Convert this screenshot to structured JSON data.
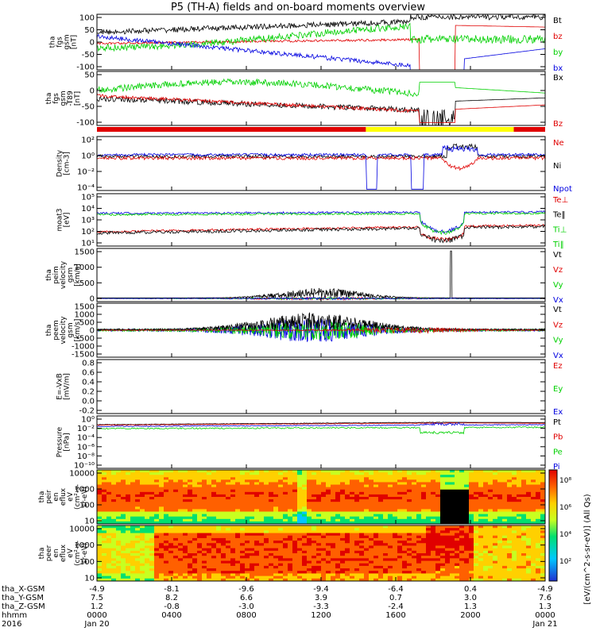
{
  "title": "P5 (TH-A) fields and on-board moments overview",
  "colors": {
    "black": "#000000",
    "red": "#e00000",
    "green": "#00d000",
    "blue": "#0000e0",
    "yellow": "#ffff00",
    "frame": "#000000"
  },
  "chart_data": [
    {
      "type": "line",
      "name": "fgs-gsm",
      "ylabel": [
        "tha",
        "fgs",
        "gsm",
        "[nT]"
      ],
      "yticks": [
        "100",
        "50",
        "0",
        "-50",
        "-100"
      ],
      "ylim": [
        -100,
        100
      ],
      "legend": [
        {
          "label": "Bt",
          "color": "#000000"
        },
        {
          "label": "bz",
          "color": "#e00000"
        },
        {
          "label": "by",
          "color": "#00d000"
        },
        {
          "label": "bx",
          "color": "#0000e0"
        }
      ]
    },
    {
      "type": "line",
      "name": "fgs-gsm-t89",
      "ylabel": [
        "tha",
        "fgs",
        "gsm",
        "-T89",
        "[nT]"
      ],
      "yticks": [
        "50",
        "0",
        "-50",
        "-100"
      ],
      "ylim": [
        -120,
        80
      ],
      "legend": [
        {
          "label": "Bx",
          "color": "#000000"
        },
        {
          "label": "Bz",
          "color": "#e00000"
        }
      ]
    },
    {
      "type": "line",
      "name": "density",
      "ylabel": [
        "Density",
        "[cm-3]"
      ],
      "yticks": [
        "10²",
        "10⁰",
        "10⁻²",
        "10⁻⁴"
      ],
      "ylim": [
        -5,
        3
      ],
      "log": true,
      "legend": [
        {
          "label": "Ne",
          "color": "#e00000"
        },
        {
          "label": "Ni",
          "color": "#000000"
        },
        {
          "label": "Npot",
          "color": "#0000e0"
        }
      ]
    },
    {
      "type": "line",
      "name": "temperature",
      "ylabel": [
        "moat3",
        "[eV]"
      ],
      "yticks": [
        "10⁵",
        "10⁴",
        "10³",
        "10²",
        "10¹"
      ],
      "ylim": [
        1,
        5
      ],
      "log": true,
      "legend": [
        {
          "label": "Te⊥",
          "color": "#e00000"
        },
        {
          "label": "Te‖",
          "color": "#000000"
        },
        {
          "label": "Ti⊥",
          "color": "#00d000"
        },
        {
          "label": "Ti‖",
          "color": "#00d000"
        }
      ]
    },
    {
      "type": "line",
      "name": "peim-velocity",
      "ylabel": [
        "tha",
        "peim",
        "velocity",
        "gsm",
        "[km/s]"
      ],
      "yticks": [
        "1500",
        "1000",
        "500",
        "0"
      ],
      "ylim": [
        -100,
        1600
      ],
      "legend": [
        {
          "label": "Vt",
          "color": "#000000"
        },
        {
          "label": "Vz",
          "color": "#e00000"
        },
        {
          "label": "Vy",
          "color": "#00d000"
        },
        {
          "label": "Vx",
          "color": "#0000e0"
        }
      ]
    },
    {
      "type": "line",
      "name": "peem-velocity",
      "ylabel": [
        "tha",
        "peem",
        "velocity",
        "gsm",
        "[km/s]"
      ],
      "yticks": [
        "1500",
        "1000",
        "500",
        "0",
        "-500",
        "-1000",
        "-1500"
      ],
      "ylim": [
        -1500,
        1500
      ],
      "legend": [
        {
          "label": "Vt",
          "color": "#000000"
        },
        {
          "label": "Vz",
          "color": "#e00000"
        },
        {
          "label": "Vy",
          "color": "#00d000"
        },
        {
          "label": "Vx",
          "color": "#0000e0"
        }
      ]
    },
    {
      "type": "line",
      "name": "efield",
      "ylabel": [
        "E=-VxB",
        "[mV/m]"
      ],
      "yticks": [
        "0.8",
        "0.6",
        "0.4",
        "0.2",
        "0.0",
        "-0.2"
      ],
      "ylim": [
        -0.2,
        1.0
      ],
      "legend": [
        {
          "label": "Ez",
          "color": "#e00000"
        },
        {
          "label": "Ey",
          "color": "#00d000"
        },
        {
          "label": "Ex",
          "color": "#0000e0"
        }
      ]
    },
    {
      "type": "line",
      "name": "pressure",
      "ylabel": [
        "Pressure",
        "[nPa]"
      ],
      "yticks": [
        "10⁰",
        "10⁻²",
        "10⁻⁴",
        "10⁻⁶",
        "10⁻⁸",
        "10⁻¹⁰"
      ],
      "ylim": [
        -10.5,
        1.5
      ],
      "log": true,
      "legend": [
        {
          "label": "Pt",
          "color": "#000000"
        },
        {
          "label": "Pb",
          "color": "#e00000"
        },
        {
          "label": "Pe",
          "color": "#00d000"
        },
        {
          "label": "Pi",
          "color": "#0000e0"
        }
      ]
    },
    {
      "type": "heatmap",
      "name": "peir-eflux",
      "ylabel": [
        "tha",
        "peir",
        "en",
        "eflux",
        "eV",
        "(cm²-s-",
        "sr-eV)"
      ],
      "yticks": [
        "10000",
        "1000",
        "100",
        "10"
      ],
      "log": true
    },
    {
      "type": "heatmap",
      "name": "peer-eflux",
      "ylabel": [
        "tha",
        "peer",
        "en",
        "eflux",
        "eV",
        "(cm²-s-",
        "sr-eV)"
      ],
      "yticks": [
        "10000",
        "1000",
        "100",
        "10"
      ],
      "log": true
    }
  ],
  "colorbar": {
    "ticks": [
      "10⁸",
      "10⁶",
      "10⁴",
      "10²"
    ],
    "label": "[eV/(cm^2-s-sr-eV)] (All Qs)"
  },
  "x_axis": {
    "rows": [
      {
        "label": "tha_X-GSM",
        "values": [
          "-4.9",
          "-8.1",
          "-9.6",
          "-9.4",
          "-6.4",
          "0.4",
          "-4.9"
        ]
      },
      {
        "label": "tha_Y-GSM",
        "values": [
          "7.5",
          "8.2",
          "6.6",
          "3.9",
          "0.7",
          "3.0",
          "7.6"
        ]
      },
      {
        "label": "tha_Z-GSM",
        "values": [
          "1.2",
          "-0.8",
          "-3.0",
          "-3.3",
          "-2.4",
          "1.3",
          "1.3"
        ]
      },
      {
        "label": "hhmm",
        "values": [
          "0000",
          "0400",
          "0800",
          "1200",
          "1600",
          "2000",
          "0000"
        ]
      },
      {
        "label": "2016",
        "values": [
          "Jan 20",
          "",
          "",
          "",
          "",
          "",
          "Jan 21"
        ]
      }
    ]
  }
}
